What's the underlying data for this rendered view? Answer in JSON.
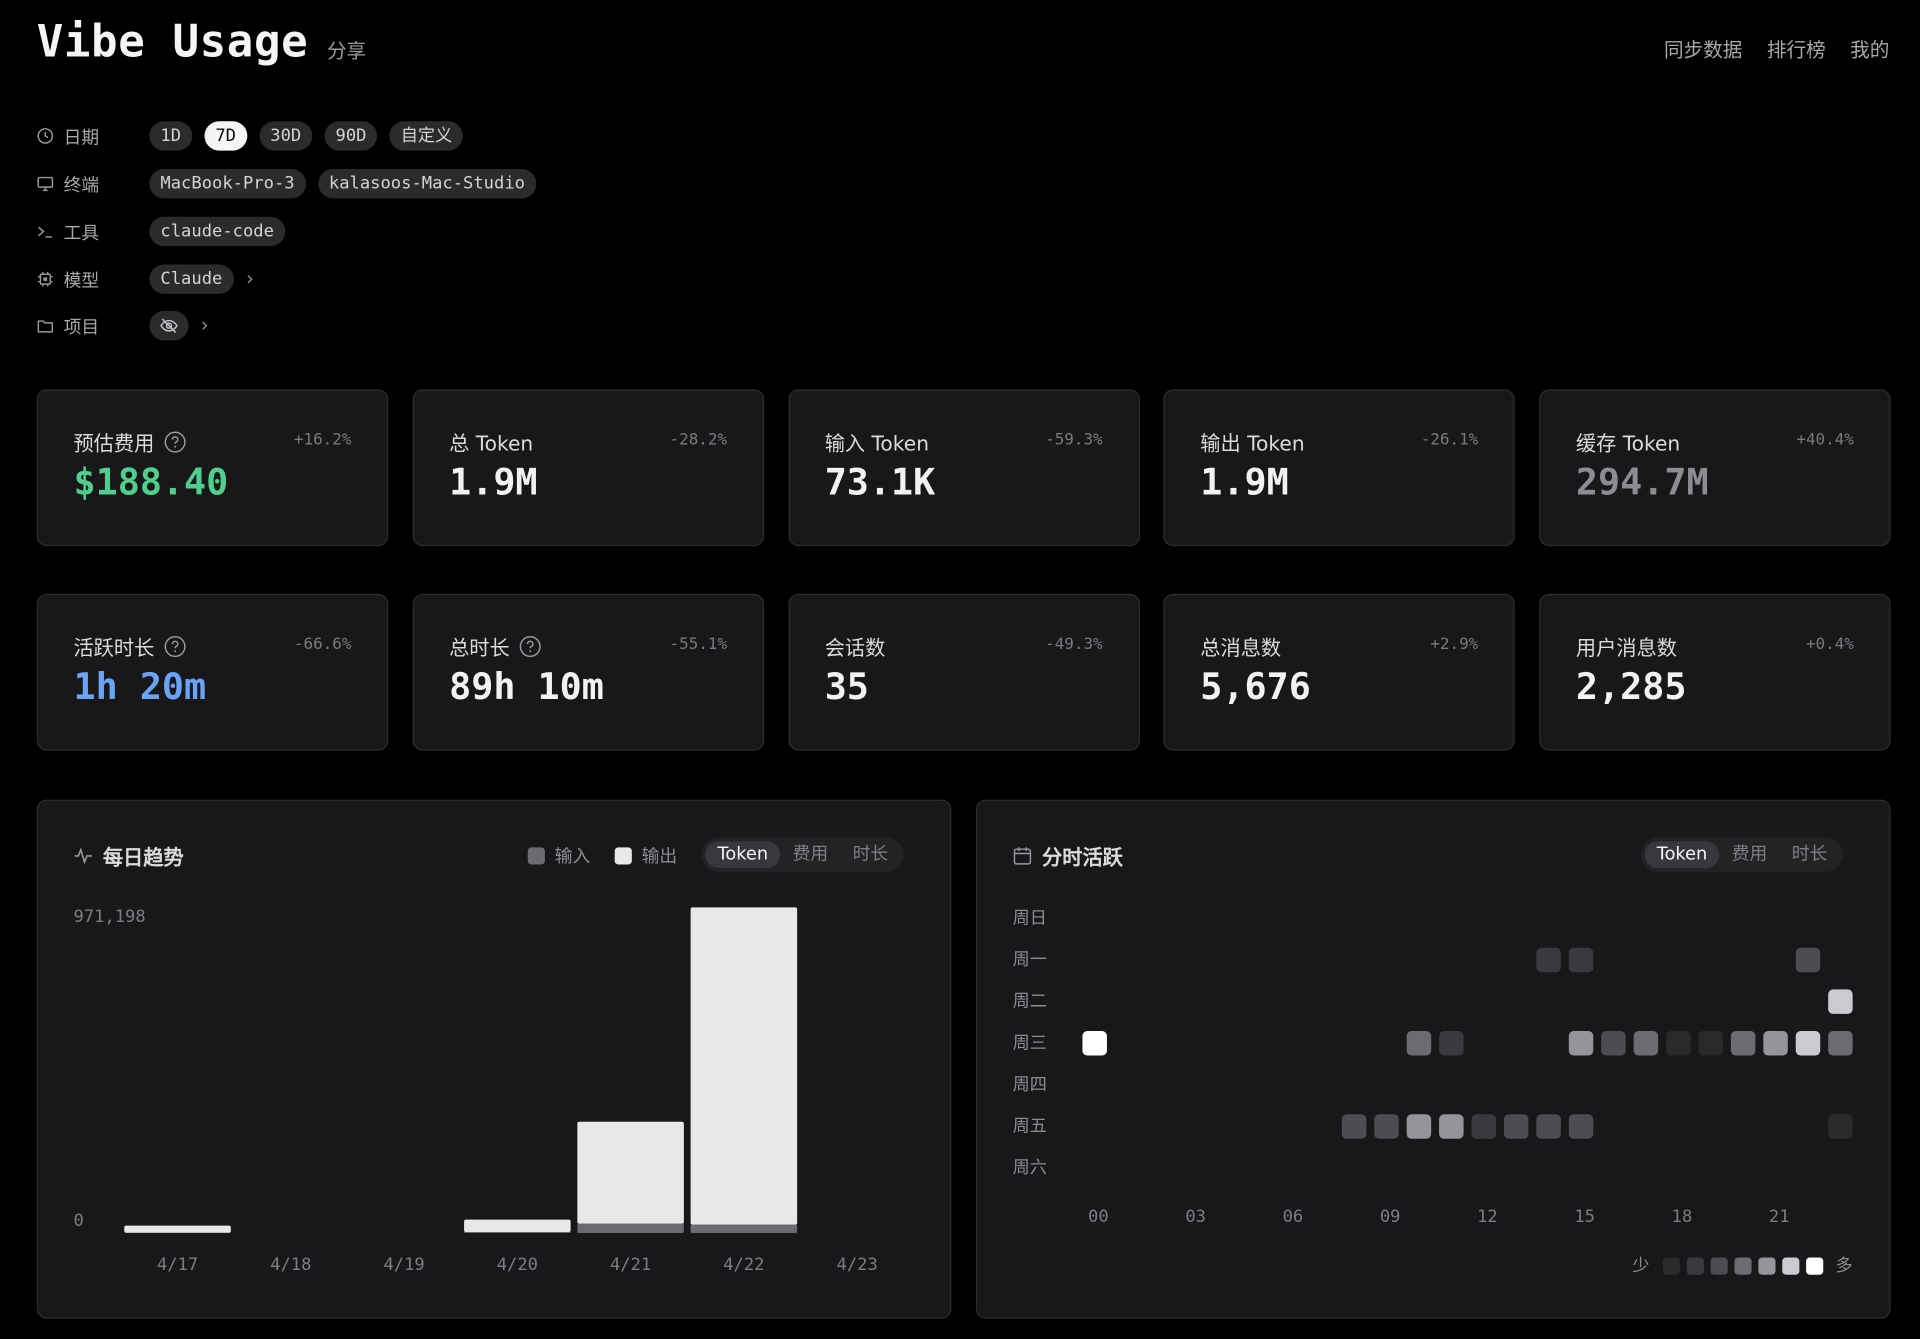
{
  "header": {
    "title": "Vibe Usage",
    "share": "分享",
    "nav": [
      "同步数据",
      "排行榜",
      "我的"
    ]
  },
  "filters": [
    {
      "label": "日期",
      "options": [
        "1D",
        "7D",
        "30D",
        "90D",
        "自定义"
      ],
      "selected": "7D"
    },
    {
      "label": "终端",
      "options": [
        "MacBook-Pro-3",
        "kalasoos-Mac-Studio"
      ]
    },
    {
      "label": "工具",
      "options": [
        "claude-code"
      ]
    },
    {
      "label": "模型",
      "options": [
        "Claude"
      ]
    },
    {
      "label": "项目",
      "options": []
    }
  ],
  "stats": [
    {
      "label": "预估费用",
      "help": true,
      "change": "+16.2%",
      "value": "$188.40",
      "color": "#4fcf8b"
    },
    {
      "label": "总 Token",
      "change": "-28.2%",
      "value": "1.9M",
      "color": "#f2f2f3"
    },
    {
      "label": "输入 Token",
      "change": "-59.3%",
      "value": "73.1K",
      "color": "#f2f2f3"
    },
    {
      "label": "输出 Token",
      "change": "-26.1%",
      "value": "1.9M",
      "color": "#f2f2f3"
    },
    {
      "label": "缓存 Token",
      "change": "+40.4%",
      "value": "294.7M",
      "color": "#8c8c91"
    },
    {
      "label": "活跃时长",
      "help": true,
      "change": "-66.6%",
      "value": "1h 20m",
      "color": "#6aa4f7"
    },
    {
      "label": "总时长",
      "help": true,
      "change": "-55.1%",
      "value": "89h 10m",
      "color": "#f2f2f3"
    },
    {
      "label": "会话数",
      "change": "-49.3%",
      "value": "35",
      "color": "#f2f2f3"
    },
    {
      "label": "总消息数",
      "change": "+2.9%",
      "value": "5,676",
      "color": "#f2f2f3"
    },
    {
      "label": "用户消息数",
      "change": "+0.4%",
      "value": "2,285",
      "color": "#f2f2f3"
    }
  ],
  "daily_trend": {
    "title": "每日趋势",
    "tabs": [
      "Token",
      "费用",
      "时长"
    ],
    "active_tab": "Token",
    "chart_data": {
      "type": "bar",
      "stacked": true,
      "categories": [
        "4/17",
        "4/18",
        "4/19",
        "4/20",
        "4/21",
        "4/22",
        "4/23"
      ],
      "series": [
        {
          "name": "输入",
          "color": "#6b6b70",
          "values": [
            1000,
            0,
            0,
            3000,
            28000,
            25000,
            0
          ]
        },
        {
          "name": "输出",
          "color": "#e8e8ea",
          "values": [
            21000,
            0,
            0,
            37000,
            304000,
            946198,
            0
          ]
        }
      ],
      "ylim": [
        0,
        971198
      ],
      "yticks": [
        0,
        {
          "value": 971198,
          "label": "971,198"
        }
      ]
    }
  },
  "hourly_activity": {
    "title": "分时活跃",
    "tabs": [
      "Token",
      "费用",
      "时长"
    ],
    "active_tab": "Token",
    "chart_data": {
      "type": "heatmap",
      "rows": [
        "周日",
        "周一",
        "周二",
        "周三",
        "周四",
        "周五",
        "周六"
      ],
      "columns": [
        "00",
        null,
        null,
        "03",
        null,
        null,
        "06",
        null,
        null,
        "09",
        null,
        null,
        "12",
        null,
        null,
        "15",
        null,
        null,
        "18",
        null,
        null,
        "21",
        null,
        null
      ],
      "values": [
        [
          null,
          null,
          null,
          null,
          null,
          null,
          null,
          null,
          null,
          null,
          null,
          null,
          null,
          null,
          null,
          null,
          null,
          null,
          null,
          null,
          null,
          null,
          null,
          null
        ],
        [
          null,
          null,
          null,
          null,
          null,
          null,
          null,
          null,
          null,
          null,
          null,
          null,
          null,
          null,
          2,
          2,
          null,
          null,
          null,
          null,
          null,
          null,
          3,
          null
        ],
        [
          null,
          null,
          null,
          null,
          null,
          null,
          null,
          null,
          null,
          null,
          null,
          null,
          null,
          null,
          null,
          null,
          null,
          null,
          null,
          null,
          null,
          null,
          null,
          6
        ],
        [
          7,
          null,
          null,
          null,
          null,
          null,
          null,
          null,
          null,
          null,
          4,
          2,
          null,
          null,
          null,
          5,
          3,
          4,
          1,
          1,
          4,
          5,
          6,
          4
        ],
        [
          null,
          null,
          null,
          null,
          null,
          null,
          null,
          null,
          null,
          null,
          null,
          null,
          null,
          null,
          null,
          null,
          null,
          null,
          null,
          null,
          null,
          null,
          null,
          null
        ],
        [
          null,
          null,
          null,
          null,
          null,
          null,
          null,
          null,
          3,
          3,
          5,
          5,
          2,
          3,
          3,
          3,
          null,
          null,
          null,
          null,
          null,
          null,
          null,
          1
        ],
        [
          null,
          null,
          null,
          null,
          null,
          null,
          null,
          null,
          null,
          null,
          null,
          null,
          null,
          null,
          null,
          null,
          null,
          null,
          null,
          null,
          null,
          null,
          null,
          null
        ]
      ],
      "scale_colors": [
        "#2a2a2d",
        "#3a3a3e",
        "#4c4c51",
        "#6b6b70",
        "#949499",
        "#cbcbcf",
        "#ffffff"
      ],
      "legend_low": "少",
      "legend_high": "多"
    }
  }
}
